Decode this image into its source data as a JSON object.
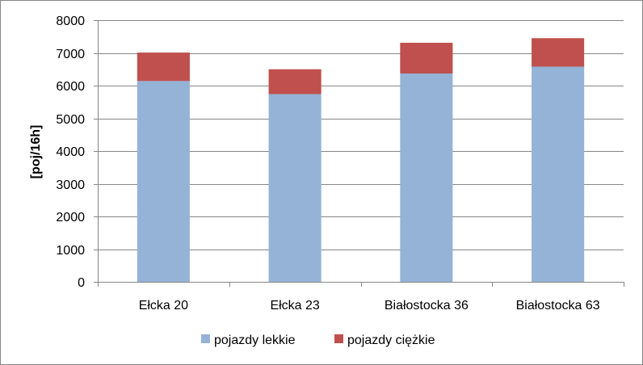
{
  "chart_data": {
    "type": "bar",
    "stacked": true,
    "categories": [
      "Ełcka 20",
      "Ełcka 23",
      "Białostocka 36",
      "Białostocka 63"
    ],
    "series": [
      {
        "name": "pojazdy lekkie",
        "values": [
          6140,
          5740,
          6370,
          6580
        ],
        "color": "#95b3d7"
      },
      {
        "name": "pojazdy ciężkie",
        "values": [
          870,
          760,
          940,
          870
        ],
        "color": "#c0504d"
      }
    ],
    "ylabel": "[poj/16h]",
    "ylim": [
      0,
      8000
    ],
    "yticks": [
      0,
      1000,
      2000,
      3000,
      4000,
      5000,
      6000,
      7000,
      8000
    ],
    "grid": true,
    "legend": "bottom"
  }
}
